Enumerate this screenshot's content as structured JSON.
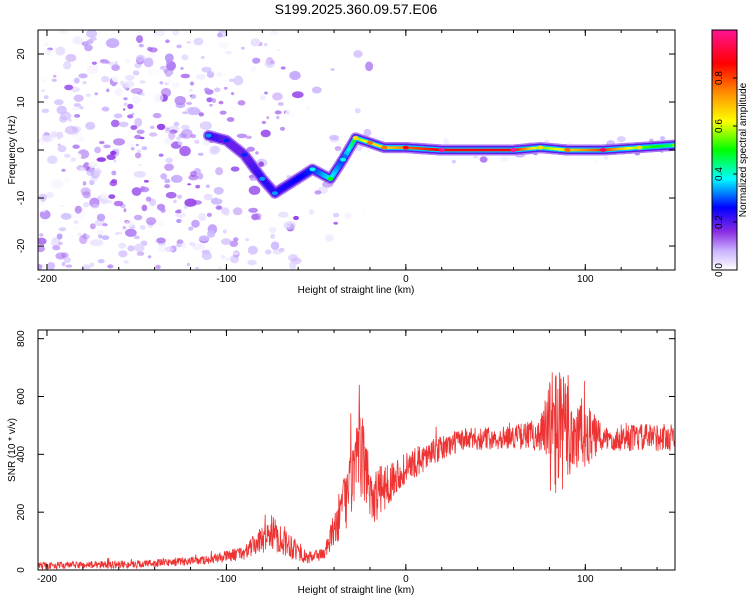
{
  "title": "S199.2025.360.09.57.E06",
  "chart_data": [
    {
      "type": "heatmap",
      "xlabel": "Height of straight line (km)",
      "ylabel": "Frequency (Hz)",
      "xlim": [
        -205,
        150
      ],
      "ylim": [
        -25,
        25
      ],
      "xticks": [
        -200,
        -100,
        0,
        100
      ],
      "yticks": [
        -20,
        -10,
        0,
        10,
        20
      ],
      "colorbar": {
        "label": "Normalized spectral amplitude",
        "range": [
          0,
          1
        ],
        "ticks": [
          0.0,
          0.2,
          0.4,
          0.6,
          0.8
        ],
        "colors": [
          "#ffffff",
          "#c9b3ff",
          "#8a2be2",
          "#0000ff",
          "#00ffff",
          "#00ff00",
          "#ffff00",
          "#ff8c00",
          "#ff0000",
          "#ff1493"
        ]
      },
      "ridge": [
        {
          "x": -110,
          "y": 3,
          "v": 0.3
        },
        {
          "x": -100,
          "y": 2,
          "v": 0.25
        },
        {
          "x": -90,
          "y": -1,
          "v": 0.25
        },
        {
          "x": -80,
          "y": -6,
          "v": 0.3
        },
        {
          "x": -73,
          "y": -9,
          "v": 0.3
        },
        {
          "x": -52,
          "y": -4,
          "v": 0.35
        },
        {
          "x": -42,
          "y": -6,
          "v": 0.45
        },
        {
          "x": -35,
          "y": -2,
          "v": 0.35
        },
        {
          "x": -28,
          "y": 2.5,
          "v": 0.6
        },
        {
          "x": -20,
          "y": 1.5,
          "v": 0.7
        },
        {
          "x": -12,
          "y": 0.5,
          "v": 0.7
        },
        {
          "x": 0,
          "y": 0.5,
          "v": 0.8
        },
        {
          "x": 20,
          "y": 0,
          "v": 0.9
        },
        {
          "x": 60,
          "y": 0,
          "v": 0.9
        },
        {
          "x": 75,
          "y": 0.5,
          "v": 0.6
        },
        {
          "x": 90,
          "y": 0,
          "v": 0.7
        },
        {
          "x": 110,
          "y": 0,
          "v": 0.85
        },
        {
          "x": 130,
          "y": 0.5,
          "v": 0.6
        },
        {
          "x": 150,
          "y": 1,
          "v": 0.5
        }
      ]
    },
    {
      "type": "line",
      "xlabel": "Height of straight line (km)",
      "ylabel": "SNR (10 * v/v)",
      "xlim": [
        -205,
        150
      ],
      "ylim": [
        0,
        830
      ],
      "xticks": [
        -200,
        -100,
        0,
        100
      ],
      "yticks": [
        0,
        200,
        400,
        600,
        800
      ],
      "color": "#ee3333",
      "envelope": [
        {
          "x": -205,
          "mean": 15,
          "noise": 12
        },
        {
          "x": -150,
          "mean": 20,
          "noise": 14
        },
        {
          "x": -110,
          "mean": 35,
          "noise": 15
        },
        {
          "x": -90,
          "mean": 60,
          "noise": 25
        },
        {
          "x": -75,
          "mean": 130,
          "noise": 60
        },
        {
          "x": -65,
          "mean": 90,
          "noise": 50
        },
        {
          "x": -55,
          "mean": 40,
          "noise": 20
        },
        {
          "x": -45,
          "mean": 60,
          "noise": 25
        },
        {
          "x": -35,
          "mean": 220,
          "noise": 100
        },
        {
          "x": -25,
          "mean": 400,
          "noise": 150
        },
        {
          "x": -18,
          "mean": 250,
          "noise": 100
        },
        {
          "x": -5,
          "mean": 330,
          "noise": 60
        },
        {
          "x": 10,
          "mean": 390,
          "noise": 50
        },
        {
          "x": 30,
          "mean": 450,
          "noise": 40
        },
        {
          "x": 60,
          "mean": 460,
          "noise": 40
        },
        {
          "x": 75,
          "mean": 470,
          "noise": 60
        },
        {
          "x": 82,
          "mean": 480,
          "noise": 250
        },
        {
          "x": 95,
          "mean": 470,
          "noise": 150
        },
        {
          "x": 110,
          "mean": 455,
          "noise": 45
        },
        {
          "x": 150,
          "mean": 460,
          "noise": 50
        }
      ]
    }
  ]
}
